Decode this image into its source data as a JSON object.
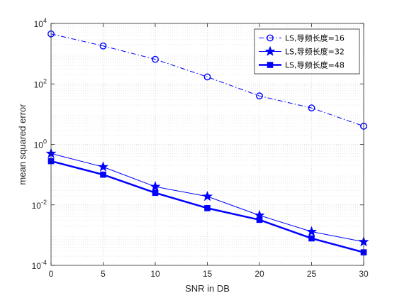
{
  "chart_data": {
    "type": "line",
    "xlabel": "SNR in DB",
    "ylabel": "mean squared error",
    "xlim": [
      0,
      30
    ],
    "ylim_exp": [
      -4,
      4
    ],
    "yscale": "log",
    "grid": true,
    "minor_grid": true,
    "legend_position": "top-right",
    "x_ticks": [
      0,
      5,
      10,
      15,
      20,
      25,
      30
    ],
    "y_tick_exponents": [
      -4,
      -2,
      0,
      2,
      4
    ],
    "series": [
      {
        "name": "LS,导频长度=16",
        "x": [
          0,
          5,
          10,
          15,
          20,
          25,
          30
        ],
        "y": [
          4500,
          1800,
          650,
          170,
          40,
          16,
          4
        ],
        "marker": "circle",
        "line_style": "dashdot",
        "line_width": 1,
        "color": "#0000ff"
      },
      {
        "name": "LS,导频长度=32",
        "x": [
          0,
          5,
          10,
          15,
          20,
          25,
          30
        ],
        "y": [
          0.5,
          0.18,
          0.04,
          0.019,
          0.0045,
          0.0013,
          0.0006
        ],
        "marker": "star",
        "line_style": "solid",
        "line_width": 1,
        "color": "#0000ff"
      },
      {
        "name": "LS,导频长度=48",
        "x": [
          0,
          5,
          10,
          15,
          20,
          25,
          30
        ],
        "y": [
          0.28,
          0.1,
          0.025,
          0.0078,
          0.0032,
          0.00078,
          0.00027
        ],
        "marker": "square",
        "line_style": "solid",
        "line_width": 2.5,
        "color": "#0000ff"
      }
    ]
  }
}
